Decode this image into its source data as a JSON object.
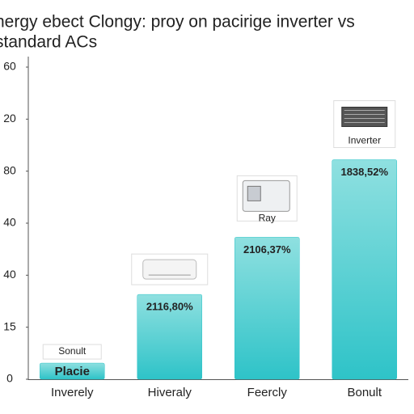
{
  "chart_data": {
    "type": "bar",
    "title": [
      "nergy ebect Clongy: proy on pacirige inverter vs",
      "standard ACs"
    ],
    "categories": [
      "Inverely",
      "Hiveraly",
      "Feercly",
      "Bonult"
    ],
    "values": [
      0.31,
      1.63,
      2.73,
      4.22
    ],
    "bar_labels": [
      "Placie",
      "2116,80%",
      "2106,37%",
      "1838,52%"
    ],
    "callouts": [
      "Sonult",
      null,
      "Ray",
      "Inverter"
    ],
    "color": "#2ec3c8",
    "ylim": [
      0,
      6
    ],
    "yticks": [
      0,
      {
        "value": 1,
        "label": "15"
      },
      {
        "value": 2,
        "label": "40"
      },
      {
        "value": 3,
        "label": "40"
      },
      {
        "value": 4,
        "label": "80"
      },
      {
        "value": 5,
        "label": "20"
      },
      {
        "value": 6,
        "label": "60"
      }
    ],
    "grid": false
  }
}
